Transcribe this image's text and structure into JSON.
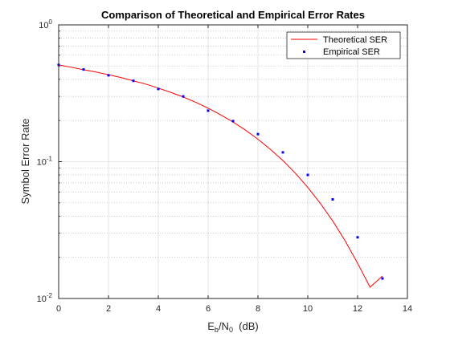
{
  "chart_data": {
    "type": "line",
    "title": "Comparison of Theoretical and Empirical Error Rates",
    "xlabel": {
      "base": "E",
      "sub1": "b",
      "mid": "/N",
      "sub2": "0",
      "unit": "  (dB)"
    },
    "ylabel": "Symbol Error Rate",
    "xlim": [
      0,
      14
    ],
    "ylim": [
      0.01,
      1
    ],
    "yscale": "log",
    "grid": true,
    "legend_position": "top-right",
    "x_ticks": [
      "0",
      "2",
      "4",
      "6",
      "8",
      "10",
      "12",
      "14"
    ],
    "y_ticks": [
      {
        "value": 1,
        "base": "10",
        "exp": "0"
      },
      {
        "value": 0.1,
        "base": "10",
        "exp": "-1"
      },
      {
        "value": 0.01,
        "base": "10",
        "exp": "-2"
      }
    ],
    "series": [
      {
        "name": "Theoretical SER",
        "style": "line",
        "color": "#ff0000",
        "x": [
          0,
          0.5,
          1,
          1.5,
          2,
          2.5,
          3,
          3.5,
          4,
          4.5,
          5,
          5.5,
          6,
          6.5,
          7,
          7.5,
          8,
          8.5,
          9,
          9.5,
          10,
          10.5,
          11,
          11.5,
          12,
          12.5,
          13
        ],
        "y": [
          0.51,
          0.49,
          0.47,
          0.452,
          0.432,
          0.412,
          0.39,
          0.369,
          0.345,
          0.321,
          0.297,
          0.272,
          0.246,
          0.22,
          0.195,
          0.17,
          0.146,
          0.123,
          0.102,
          0.0824,
          0.0649,
          0.0497,
          0.0369,
          0.0264,
          0.0181,
          0.0121,
          0.0146
        ]
      },
      {
        "name": "Empirical SER",
        "style": "markers",
        "color": "#0000ff",
        "x": [
          0,
          1,
          2,
          3,
          4,
          5,
          6,
          7,
          8,
          9,
          10,
          11,
          12,
          13
        ],
        "y": [
          0.51,
          0.472,
          0.428,
          0.39,
          0.34,
          0.3,
          0.236,
          0.198,
          0.159,
          0.117,
          0.08,
          0.053,
          0.028,
          0.014
        ]
      }
    ]
  }
}
